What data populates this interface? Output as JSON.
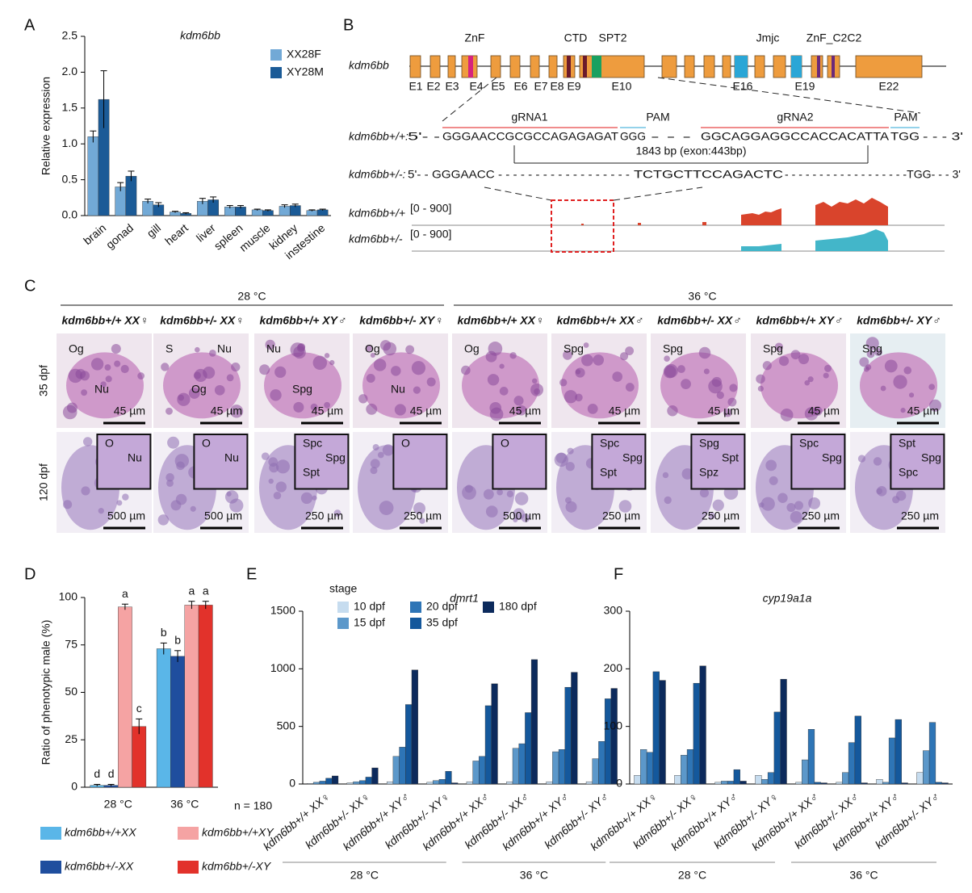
{
  "panel_labels": [
    "A",
    "B",
    "C",
    "D",
    "E",
    "F"
  ],
  "chart_data": [
    {
      "type": "bar",
      "title": "kdm6bb",
      "ylabel": "Relative expression",
      "categories": [
        "brain",
        "gonad",
        "gill",
        "heart",
        "liver",
        "spleen",
        "muscle",
        "kidney",
        "instestine"
      ],
      "series": [
        {
          "name": "XX28F",
          "color": "#72a9d6",
          "values": [
            1.1,
            0.4,
            0.2,
            0.05,
            0.2,
            0.12,
            0.08,
            0.13,
            0.07
          ],
          "errors": [
            0.08,
            0.06,
            0.03,
            0.01,
            0.04,
            0.02,
            0.01,
            0.02,
            0.01
          ]
        },
        {
          "name": "XY28M",
          "color": "#1b5b97",
          "values": [
            1.62,
            0.55,
            0.15,
            0.03,
            0.22,
            0.12,
            0.07,
            0.14,
            0.08
          ],
          "errors": [
            0.4,
            0.07,
            0.03,
            0.01,
            0.04,
            0.02,
            0.01,
            0.02,
            0.01
          ]
        }
      ],
      "ylim": [
        0,
        2.5
      ],
      "yticks": [
        {
          "value": 0,
          "label": "0.0"
        },
        0.5,
        {
          "value": 1,
          "label": "1.0"
        },
        1.5,
        {
          "value": 2,
          "label": "2.0"
        },
        2.5
      ],
      "legend": "upper right"
    },
    {
      "type": "bar",
      "ylabel": "Ratio of phenotypic male (%)",
      "annotation": "n = 180",
      "categories": [
        "28 °C",
        "36 °C"
      ],
      "series": [
        {
          "name": "kdm6bb+/+XX",
          "color": "#5ab6e8",
          "values": [
            1,
            73
          ],
          "errors": [
            0.5,
            3
          ],
          "letters": [
            "d",
            "b"
          ]
        },
        {
          "name": "kdm6bb+/-XX",
          "color": "#1f4e9e",
          "values": [
            1,
            69
          ],
          "errors": [
            0.5,
            3
          ],
          "letters": [
            "d",
            "b"
          ]
        },
        {
          "name": "kdm6bb+/+XY",
          "color": "#f5a3a3",
          "values": [
            95,
            96
          ],
          "errors": [
            1.5,
            2
          ],
          "letters": [
            "a",
            "a"
          ]
        },
        {
          "name": "kdm6bb+/-XY",
          "color": "#e2322b",
          "values": [
            32,
            96
          ],
          "errors": [
            4,
            2
          ],
          "letters": [
            "c",
            "a"
          ]
        }
      ],
      "ylim": [
        0,
        100
      ],
      "yticks": [
        0,
        25,
        50,
        75,
        100
      ],
      "legend": "lower center"
    },
    {
      "type": "bar",
      "title": "dmrt1",
      "legend_title": "stage",
      "categories": [
        "kdm6bb+/+ XX♀",
        "kdm6bb+/- XX♀",
        "kdm6bb+/+ XY♂",
        "kdm6bb+/- XY♀",
        "kdm6bb+/+ XX♂",
        "kdm6bb+/- XX♂",
        "kdm6bb+/+ XY♂",
        "kdm6bb+/- XY♂"
      ],
      "groups": [
        "28 °C",
        "36 °C"
      ],
      "series": [
        {
          "name": "10 dpf",
          "color": "#c6dcef",
          "values": [
            5,
            10,
            20,
            15,
            20,
            20,
            20,
            20
          ]
        },
        {
          "name": "15 dpf",
          "color": "#5c98ca",
          "values": [
            15,
            20,
            240,
            30,
            200,
            310,
            280,
            220
          ]
        },
        {
          "name": "20 dpf",
          "color": "#2e75b6",
          "values": [
            25,
            30,
            320,
            40,
            240,
            350,
            300,
            370
          ]
        },
        {
          "name": "35 dpf",
          "color": "#14589c",
          "values": [
            50,
            60,
            690,
            110,
            680,
            620,
            840,
            740
          ]
        },
        {
          "name": "180 dpf",
          "color": "#0c2a5c",
          "values": [
            70,
            140,
            990,
            10,
            870,
            1080,
            970,
            830
          ]
        }
      ],
      "ylim": [
        0,
        1500
      ],
      "yticks": [
        0,
        500,
        1000,
        1500
      ],
      "legend": "upper left"
    },
    {
      "type": "bar",
      "title": "cyp19a1a",
      "categories": [
        "kdm6bb+/+ XX♀",
        "kdm6bb+/- XX♀",
        "kdm6bb+/+ XY♂",
        "kdm6bb+/- XY♀",
        "kdm6bb+/+ XX♂",
        "kdm6bb+/- XX♂",
        "kdm6bb+/+ XY♂",
        "kdm6bb+/- XY♂"
      ],
      "groups": [
        "28 °C",
        "36 °C"
      ],
      "series": [
        {
          "name": "10 dpf",
          "color": "#c6dcef",
          "values": [
            15,
            15,
            3,
            15,
            3,
            3,
            8,
            20
          ]
        },
        {
          "name": "15 dpf",
          "color": "#5c98ca",
          "values": [
            60,
            50,
            5,
            8,
            42,
            20,
            3,
            58
          ]
        },
        {
          "name": "20 dpf",
          "color": "#2e75b6",
          "values": [
            55,
            60,
            5,
            20,
            95,
            72,
            80,
            107
          ]
        },
        {
          "name": "35 dpf",
          "color": "#14589c",
          "values": [
            195,
            175,
            25,
            125,
            3,
            118,
            112,
            3
          ]
        },
        {
          "name": "180 dpf",
          "color": "#0c2a5c",
          "values": [
            180,
            205,
            5,
            182,
            2,
            2,
            2,
            2
          ]
        }
      ],
      "ylim": [
        0,
        300
      ],
      "yticks": [
        0,
        100,
        200,
        300
      ]
    }
  ],
  "panel_b": {
    "gene": "kdm6bb",
    "domains": [
      "ZnF",
      "CTD",
      "SPT2",
      "Jmjc",
      "ZnF_C2C2"
    ],
    "exons": [
      "E1",
      "E2",
      "E3",
      "E4",
      "E5",
      "E6",
      "E7",
      "E8",
      "E9",
      "E10",
      "E16",
      "E19",
      "E22"
    ],
    "wt": {
      "label": "kdm6bb+/+:",
      "parts": [
        "5'- -",
        "GGGAACCGCGCCAGAGAGAT",
        "GGG",
        "- - -",
        "GGCAGGAGGCCACCACATTA",
        "TGG",
        "- - - 3'"
      ]
    },
    "guides": [
      "gRNA1",
      "PAM",
      "gRNA2",
      "PAM"
    ],
    "deletion": "1843 bp (exon:443bp)",
    "mut": {
      "label": "kdm6bb+/-:",
      "parts": [
        "5'- - GGGAACC - - - - - - - - - - - - - - - - - -",
        "TCTGCTTCCAGACTC",
        "- - - - - - - - - - - - - - - - - -TGG- - - 3'"
      ]
    },
    "tracks": [
      {
        "label": "kdm6bb+/+",
        "range": "[0 - 900]"
      },
      {
        "label": "kdm6bb+/-",
        "range": "[0 - 900]"
      }
    ]
  },
  "panel_c": {
    "temperatures": [
      "28 °C",
      "36 °C"
    ],
    "columns": [
      "kdm6bb+/+ XX♀",
      "kdm6bb+/- XX♀",
      "kdm6bb+/+ XY♂",
      "kdm6bb+/- XY♀",
      "kdm6bb+/+ XX♀",
      "kdm6bb+/+ XX♂",
      "kdm6bb+/- XX♂",
      "kdm6bb+/+ XY♂",
      "kdm6bb+/- XY♂"
    ],
    "rows": [
      {
        "label": "35 dpf",
        "cells": [
          {
            "labels": [
              "Og",
              "Nu"
            ],
            "scale": "45 µm"
          },
          {
            "labels": [
              "S",
              "Og",
              "Nu"
            ],
            "scale": "45 µm"
          },
          {
            "labels": [
              "Nu",
              "Spg"
            ],
            "scale": "45 µm"
          },
          {
            "labels": [
              "Og",
              "Nu"
            ],
            "scale": "45 µm"
          },
          {
            "labels": [
              "Og"
            ],
            "scale": "45 µm"
          },
          {
            "labels": [
              "Spg"
            ],
            "scale": "45 µm"
          },
          {
            "labels": [
              "Spg"
            ],
            "scale": "45 µm"
          },
          {
            "labels": [
              "Spg"
            ],
            "scale": "45 µm"
          },
          {
            "labels": [
              "Spg"
            ],
            "scale": "45 µm"
          }
        ]
      },
      {
        "label": "120 dpf",
        "cells": [
          {
            "labels": [
              "O",
              "Nu"
            ],
            "scale": "500 µm"
          },
          {
            "labels": [
              "O",
              "Nu"
            ],
            "scale": "500 µm"
          },
          {
            "labels": [
              "Spc",
              "Spg",
              "Spt"
            ],
            "scale": "250 µm"
          },
          {
            "labels": [
              "O"
            ],
            "scale": "250 µm"
          },
          {
            "labels": [
              "O"
            ],
            "scale": "500 µm"
          },
          {
            "labels": [
              "Spc",
              "Spg",
              "Spt"
            ],
            "scale": "250 µm"
          },
          {
            "labels": [
              "Spg",
              "Spt",
              "Spz"
            ],
            "scale": "250 µm"
          },
          {
            "labels": [
              "Spc",
              "Spg"
            ],
            "scale": "250 µm"
          },
          {
            "labels": [
              "Spt",
              "Spg",
              "Spc"
            ],
            "scale": "250 µm"
          }
        ]
      }
    ]
  }
}
